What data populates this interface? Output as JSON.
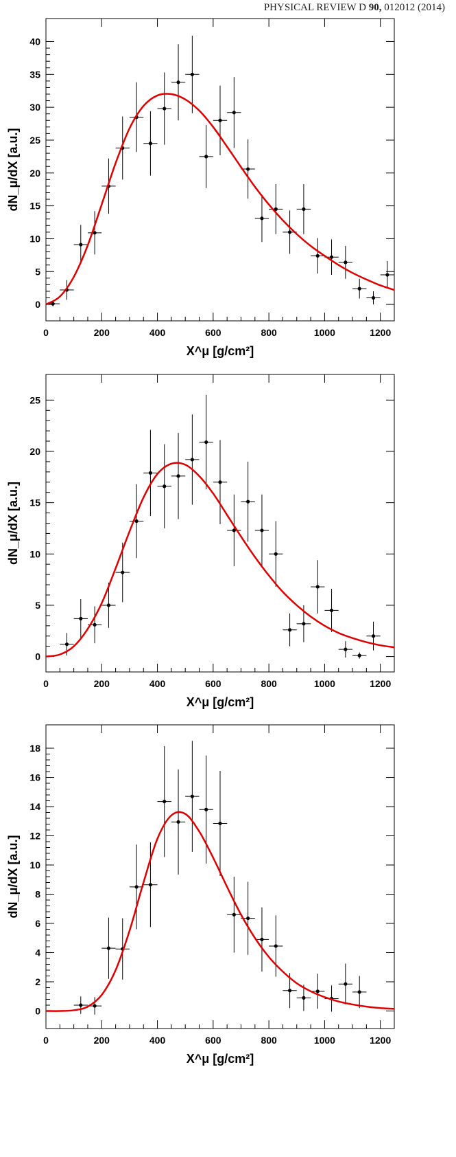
{
  "header": {
    "journal": "PHYSICAL REVIEW D",
    "volume": "90,",
    "article": "012012 (2014)"
  },
  "chart_data": [
    {
      "type": "scatter",
      "xlabel": "X^μ [g/cm²]",
      "ylabel": "dN_μ/dX [a.u.]",
      "xlim": [
        0,
        1250
      ],
      "ylim": [
        -2.5,
        43.5
      ],
      "xticks": [
        0,
        200,
        400,
        600,
        800,
        1000,
        1200
      ],
      "yticks": [
        0,
        5,
        10,
        15,
        20,
        25,
        30,
        35,
        40
      ],
      "x_bin_half_width": 25,
      "series": [
        {
          "points": [
            {
              "x": 25,
              "y": 0.1,
              "err": 0.4
            },
            {
              "x": 75,
              "y": 2.2,
              "err": 1.5
            },
            {
              "x": 125,
              "y": 9.1,
              "err": 3.0
            },
            {
              "x": 175,
              "y": 10.9,
              "err": 3.3
            },
            {
              "x": 225,
              "y": 18.0,
              "err": 4.2
            },
            {
              "x": 275,
              "y": 23.8,
              "err": 4.8
            },
            {
              "x": 325,
              "y": 28.5,
              "err": 5.3
            },
            {
              "x": 375,
              "y": 24.5,
              "err": 4.9
            },
            {
              "x": 425,
              "y": 29.8,
              "err": 5.5
            },
            {
              "x": 475,
              "y": 33.8,
              "err": 5.8
            },
            {
              "x": 525,
              "y": 35.0,
              "err": 5.9
            },
            {
              "x": 575,
              "y": 22.5,
              "err": 4.8
            },
            {
              "x": 625,
              "y": 28.0,
              "err": 5.3
            },
            {
              "x": 675,
              "y": 29.2,
              "err": 5.4
            },
            {
              "x": 725,
              "y": 20.6,
              "err": 4.5
            },
            {
              "x": 775,
              "y": 13.1,
              "err": 3.6
            },
            {
              "x": 825,
              "y": 14.5,
              "err": 3.8
            },
            {
              "x": 875,
              "y": 11.0,
              "err": 3.3
            },
            {
              "x": 925,
              "y": 14.5,
              "err": 3.8
            },
            {
              "x": 975,
              "y": 7.4,
              "err": 2.7
            },
            {
              "x": 1025,
              "y": 7.2,
              "err": 2.7
            },
            {
              "x": 1075,
              "y": 6.4,
              "err": 2.5
            },
            {
              "x": 1125,
              "y": 2.4,
              "err": 1.5
            },
            {
              "x": 1175,
              "y": 1.0,
              "err": 1.0
            },
            {
              "x": 1225,
              "y": 4.5,
              "err": 2.1
            }
          ]
        },
        {
          "fit_curve": {
            "x": [
              0,
              50,
              100,
              150,
              200,
              250,
              300,
              350,
              400,
              450,
              500,
              550,
              600,
              650,
              700,
              750,
              800,
              850,
              900,
              950,
              1000,
              1050,
              1100,
              1150,
              1200,
              1250
            ],
            "y": [
              0,
              1.2,
              4.2,
              9.0,
              15.2,
              21.5,
              26.8,
              30.2,
              31.8,
              32.0,
              31.2,
              29.5,
              27.0,
              24.0,
              20.9,
              17.9,
              15.2,
              12.8,
              10.7,
              8.9,
              7.4,
              6.0,
              4.8,
              3.8,
              2.9,
              2.2
            ]
          }
        }
      ]
    },
    {
      "type": "scatter",
      "xlabel": "X^μ [g/cm²]",
      "ylabel": "dN_μ/dX [a.u.]",
      "xlim": [
        0,
        1250
      ],
      "ylim": [
        -1.5,
        27.5
      ],
      "xticks": [
        0,
        200,
        400,
        600,
        800,
        1000,
        1200
      ],
      "yticks": [
        0,
        5,
        10,
        15,
        20,
        25
      ],
      "x_bin_half_width": 25,
      "series": [
        {
          "points": [
            {
              "x": 75,
              "y": 1.2,
              "err": 1.1
            },
            {
              "x": 125,
              "y": 3.7,
              "err": 1.9
            },
            {
              "x": 175,
              "y": 3.1,
              "err": 1.8
            },
            {
              "x": 225,
              "y": 5.0,
              "err": 2.2
            },
            {
              "x": 275,
              "y": 8.2,
              "err": 2.9
            },
            {
              "x": 325,
              "y": 13.2,
              "err": 3.6
            },
            {
              "x": 375,
              "y": 17.9,
              "err": 4.2
            },
            {
              "x": 425,
              "y": 16.6,
              "err": 4.1
            },
            {
              "x": 475,
              "y": 17.6,
              "err": 4.2
            },
            {
              "x": 525,
              "y": 19.2,
              "err": 4.4
            },
            {
              "x": 575,
              "y": 20.9,
              "err": 4.6
            },
            {
              "x": 625,
              "y": 17.0,
              "err": 4.1
            },
            {
              "x": 675,
              "y": 12.3,
              "err": 3.5
            },
            {
              "x": 725,
              "y": 15.1,
              "err": 3.9
            },
            {
              "x": 775,
              "y": 12.3,
              "err": 3.5
            },
            {
              "x": 825,
              "y": 10.0,
              "err": 3.2
            },
            {
              "x": 875,
              "y": 2.6,
              "err": 1.6
            },
            {
              "x": 925,
              "y": 3.2,
              "err": 1.8
            },
            {
              "x": 975,
              "y": 6.8,
              "err": 2.6
            },
            {
              "x": 1025,
              "y": 4.5,
              "err": 2.1
            },
            {
              "x": 1075,
              "y": 0.7,
              "err": 0.8
            },
            {
              "x": 1125,
              "y": 0.1,
              "err": 0.3
            },
            {
              "x": 1175,
              "y": 2.0,
              "err": 1.4
            }
          ]
        },
        {
          "fit_curve": {
            "x": [
              0,
              50,
              100,
              150,
              200,
              250,
              300,
              350,
              400,
              450,
              500,
              550,
              600,
              650,
              700,
              750,
              800,
              850,
              900,
              950,
              1000,
              1050,
              1100,
              1150,
              1200,
              1250
            ],
            "y": [
              0,
              0.2,
              1.0,
              2.7,
              5.2,
              8.6,
              12.2,
              15.5,
              17.8,
              18.8,
              18.7,
              17.6,
              15.9,
              13.8,
              11.7,
              9.7,
              7.9,
              6.3,
              5.0,
              3.9,
              3.0,
              2.3,
              1.8,
              1.4,
              1.1,
              0.9
            ]
          }
        }
      ]
    },
    {
      "type": "scatter",
      "xlabel": "X^μ [g/cm²]",
      "ylabel": "dN_μ/dX [a.u.]",
      "xlim": [
        0,
        1250
      ],
      "ylim": [
        -1.2,
        19.6
      ],
      "xticks": [
        0,
        200,
        400,
        600,
        800,
        1000,
        1200
      ],
      "yticks": [
        0,
        2,
        4,
        6,
        8,
        10,
        12,
        14,
        16,
        18
      ],
      "x_bin_half_width": 25,
      "series": [
        {
          "points": [
            {
              "x": 125,
              "y": 0.4,
              "err": 0.6
            },
            {
              "x": 175,
              "y": 0.35,
              "err": 0.6
            },
            {
              "x": 225,
              "y": 4.3,
              "err": 2.1
            },
            {
              "x": 275,
              "y": 4.25,
              "err": 2.1
            },
            {
              "x": 325,
              "y": 8.5,
              "err": 2.9
            },
            {
              "x": 375,
              "y": 8.65,
              "err": 2.9
            },
            {
              "x": 425,
              "y": 14.35,
              "err": 3.8
            },
            {
              "x": 475,
              "y": 12.95,
              "err": 3.6
            },
            {
              "x": 525,
              "y": 14.7,
              "err": 3.8
            },
            {
              "x": 575,
              "y": 13.8,
              "err": 3.7
            },
            {
              "x": 625,
              "y": 12.85,
              "err": 3.6
            },
            {
              "x": 675,
              "y": 6.6,
              "err": 2.6
            },
            {
              "x": 725,
              "y": 6.35,
              "err": 2.5
            },
            {
              "x": 775,
              "y": 4.9,
              "err": 2.2
            },
            {
              "x": 825,
              "y": 4.45,
              "err": 2.1
            },
            {
              "x": 875,
              "y": 1.4,
              "err": 1.2
            },
            {
              "x": 925,
              "y": 0.9,
              "err": 0.9
            },
            {
              "x": 975,
              "y": 1.35,
              "err": 1.2
            },
            {
              "x": 1025,
              "y": 0.85,
              "err": 0.9
            },
            {
              "x": 1075,
              "y": 1.85,
              "err": 1.4
            },
            {
              "x": 1125,
              "y": 1.3,
              "err": 1.1
            }
          ]
        },
        {
          "fit_curve": {
            "x": [
              0,
              50,
              100,
              150,
              200,
              250,
              300,
              350,
              400,
              450,
              500,
              550,
              600,
              650,
              700,
              750,
              800,
              850,
              900,
              950,
              1000,
              1050,
              1100,
              1150,
              1200,
              1250
            ],
            "y": [
              0,
              0,
              0.05,
              0.3,
              1.1,
              2.8,
              5.5,
              8.8,
              11.8,
              13.4,
              13.5,
              12.3,
              10.5,
              8.5,
              6.6,
              5.0,
              3.7,
              2.7,
              1.9,
              1.35,
              0.95,
              0.65,
              0.45,
              0.3,
              0.2,
              0.15
            ]
          }
        }
      ]
    }
  ]
}
